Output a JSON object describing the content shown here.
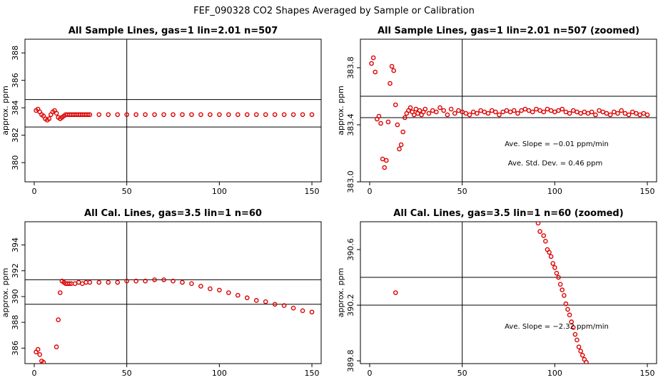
{
  "figure": {
    "title": "FEF_090328  CO2 Shapes Averaged by Sample or Calibration"
  },
  "colors": {
    "point": "#dd0000",
    "axis": "#000000",
    "background": "#ffffff"
  },
  "chart_data": [
    {
      "type": "scatter",
      "title": "All Sample Lines, gas=1 lin=2.01 n=507",
      "xlabel": "",
      "ylabel": "approx. ppm",
      "xlim": [
        -5,
        155
      ],
      "ylim": [
        378.6,
        389.0
      ],
      "xticks": [
        0,
        50,
        100,
        150
      ],
      "yticks": [
        380,
        382,
        384,
        386,
        388
      ],
      "hlines": [
        384.6,
        382.6
      ],
      "vlines": [
        50
      ],
      "annotations": [],
      "x": [
        1,
        2,
        3,
        4,
        5,
        6,
        7,
        8,
        9,
        10,
        11,
        12,
        13,
        14,
        15,
        16,
        17,
        18,
        19,
        20,
        21,
        22,
        23,
        24,
        25,
        26,
        27,
        28,
        29,
        30,
        35,
        40,
        45,
        50,
        55,
        60,
        65,
        70,
        75,
        80,
        85,
        90,
        95,
        100,
        105,
        110,
        115,
        120,
        125,
        130,
        135,
        140,
        145,
        150
      ],
      "y": [
        383.8,
        383.9,
        383.7,
        383.5,
        383.4,
        383.2,
        383.1,
        383.2,
        383.5,
        383.7,
        383.8,
        383.6,
        383.3,
        383.2,
        383.3,
        383.4,
        383.5,
        383.5,
        383.5,
        383.5,
        383.5,
        383.5,
        383.5,
        383.5,
        383.5,
        383.5,
        383.5,
        383.5,
        383.5,
        383.5,
        383.5,
        383.5,
        383.5,
        383.5,
        383.5,
        383.5,
        383.5,
        383.5,
        383.5,
        383.5,
        383.5,
        383.5,
        383.5,
        383.5,
        383.5,
        383.5,
        383.5,
        383.5,
        383.5,
        383.5,
        383.5,
        383.5,
        383.5,
        383.5
      ]
    },
    {
      "type": "scatter",
      "title": "All Sample Lines, gas=1 lin=2.01 n=507 (zoomed)",
      "xlabel": "",
      "ylabel": "approx. ppm",
      "xlim": [
        -5,
        155
      ],
      "ylim": [
        383.0,
        384.0
      ],
      "xticks": [
        0,
        50,
        100,
        150
      ],
      "yticks": [
        383.0,
        383.4,
        383.8
      ],
      "hlines": [
        383.6,
        383.45
      ],
      "vlines": [
        50
      ],
      "annotations": [
        "Ave. Slope =  −0.01  ppm/min",
        "Ave. Std. Dev. =  0.46  ppm"
      ],
      "x": [
        1,
        2,
        3,
        4,
        5,
        6,
        7,
        8,
        9,
        10,
        11,
        12,
        13,
        14,
        15,
        16,
        17,
        18,
        19,
        20,
        21,
        22,
        23,
        24,
        25,
        26,
        27,
        28,
        29,
        30,
        32,
        34,
        36,
        38,
        40,
        42,
        44,
        46,
        48,
        50,
        52,
        54,
        56,
        58,
        60,
        62,
        64,
        66,
        68,
        70,
        72,
        74,
        76,
        78,
        80,
        82,
        84,
        86,
        88,
        90,
        92,
        94,
        96,
        98,
        100,
        102,
        104,
        106,
        108,
        110,
        112,
        114,
        116,
        118,
        120,
        122,
        124,
        126,
        128,
        130,
        132,
        134,
        136,
        138,
        140,
        142,
        144,
        146,
        148,
        150
      ],
      "y": [
        383.83,
        383.87,
        383.77,
        383.44,
        383.46,
        383.41,
        383.16,
        383.1,
        383.15,
        383.42,
        383.69,
        383.81,
        383.78,
        383.54,
        383.4,
        383.23,
        383.26,
        383.35,
        383.45,
        383.48,
        383.5,
        383.52,
        383.49,
        383.47,
        383.51,
        383.48,
        383.5,
        383.47,
        383.49,
        383.51,
        383.48,
        383.5,
        383.49,
        383.52,
        383.5,
        383.47,
        383.51,
        383.48,
        383.5,
        383.49,
        383.48,
        383.47,
        383.49,
        383.48,
        383.5,
        383.49,
        383.48,
        383.5,
        383.49,
        383.47,
        383.49,
        383.5,
        383.49,
        383.5,
        383.48,
        383.5,
        383.51,
        383.5,
        383.49,
        383.51,
        383.5,
        383.49,
        383.51,
        383.5,
        383.49,
        383.5,
        383.51,
        383.49,
        383.48,
        383.5,
        383.49,
        383.48,
        383.49,
        383.48,
        383.49,
        383.47,
        383.5,
        383.49,
        383.48,
        383.47,
        383.49,
        383.48,
        383.5,
        383.48,
        383.47,
        383.49,
        383.48,
        383.47,
        383.48,
        383.47
      ]
    },
    {
      "type": "scatter",
      "title": "All Cal. Lines, gas=3.5 lin=1 n=60",
      "xlabel": "",
      "ylabel": "approx. ppm",
      "xlim": [
        -5,
        155
      ],
      "ylim": [
        384.8,
        395.8
      ],
      "xticks": [
        0,
        50,
        100,
        150
      ],
      "yticks": [
        386,
        388,
        390,
        392,
        394
      ],
      "hlines": [
        391.3,
        389.4
      ],
      "vlines": [
        50
      ],
      "annotations": [],
      "x": [
        1,
        2,
        3,
        4,
        5,
        12,
        13,
        14,
        15,
        16,
        17,
        18,
        19,
        20,
        22,
        24,
        26,
        28,
        30,
        35,
        40,
        45,
        50,
        55,
        60,
        65,
        70,
        75,
        80,
        85,
        90,
        95,
        100,
        105,
        110,
        115,
        120,
        125,
        130,
        135,
        140,
        145,
        150
      ],
      "y": [
        385.7,
        385.9,
        385.5,
        385.0,
        384.9,
        386.1,
        388.2,
        390.3,
        391.2,
        391.1,
        391.0,
        391.0,
        391.0,
        391.0,
        391.0,
        391.1,
        391.0,
        391.1,
        391.1,
        391.1,
        391.1,
        391.1,
        391.2,
        391.2,
        391.2,
        391.3,
        391.3,
        391.2,
        391.1,
        391.0,
        390.8,
        390.6,
        390.5,
        390.3,
        390.1,
        389.9,
        389.7,
        389.6,
        389.4,
        389.3,
        389.1,
        388.9,
        388.8
      ]
    },
    {
      "type": "scatter",
      "title": "All Cal. Lines, gas=3.5 lin=1 n=60 (zoomed)",
      "xlabel": "",
      "ylabel": "approx. ppm",
      "xlim": [
        -5,
        155
      ],
      "ylim": [
        389.78,
        390.8
      ],
      "xticks": [
        0,
        50,
        100,
        150
      ],
      "yticks": [
        389.8,
        390.2,
        390.6
      ],
      "hlines": [
        390.4,
        390.2
      ],
      "vlines": [
        50
      ],
      "annotations": [
        "Ave. Slope =  −2.32  ppm/min"
      ],
      "x": [
        14,
        91,
        92,
        94,
        95,
        96,
        97,
        98,
        99,
        100,
        101,
        102,
        103,
        104,
        105,
        106,
        107,
        108,
        109,
        110,
        111,
        112,
        113,
        114,
        115,
        116,
        117
      ],
      "y": [
        390.29,
        390.79,
        390.73,
        390.7,
        390.66,
        390.6,
        390.58,
        390.55,
        390.5,
        390.47,
        390.43,
        390.4,
        390.35,
        390.31,
        390.27,
        390.21,
        390.17,
        390.13,
        390.08,
        390.04,
        389.99,
        389.95,
        389.9,
        389.87,
        389.84,
        389.81,
        389.79
      ]
    }
  ]
}
